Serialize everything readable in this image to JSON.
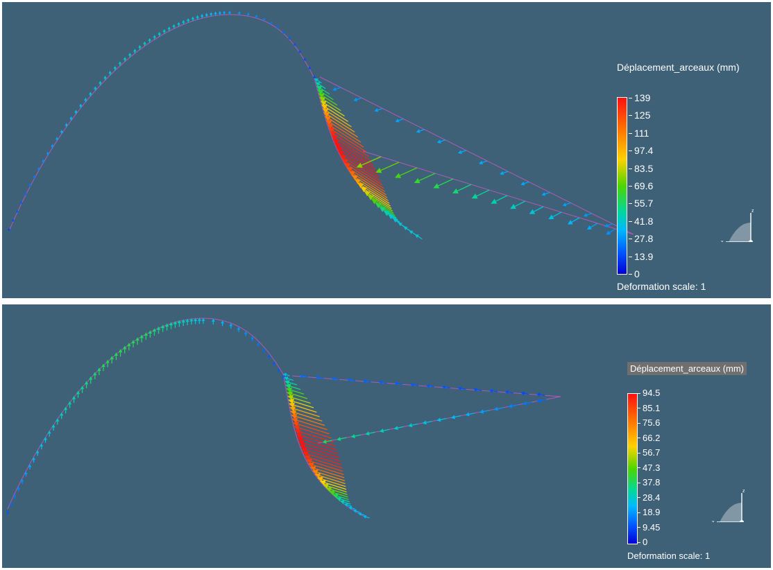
{
  "views": [
    {
      "legend_title": "Déplacement_arceaux (mm)",
      "colorbar_ticks": [
        "139",
        "125",
        "111",
        "97.4",
        "83.5",
        "69.6",
        "55.7",
        "41.8",
        "27.8",
        "13.9",
        "0"
      ],
      "deformation_scale": "Deformation scale: 1",
      "axes_labels": {
        "x": "x",
        "z": "z"
      }
    },
    {
      "legend_title": "Déplacement_arceaux (mm)",
      "colorbar_ticks": [
        "94.5",
        "85.1",
        "75.6",
        "66.2",
        "56.7",
        "47.3",
        "37.8",
        "28.4",
        "18.9",
        "9.45",
        "0"
      ],
      "deformation_scale": "Deformation scale: 1",
      "axes_labels": {
        "x": "x",
        "z": "z"
      }
    }
  ],
  "colors": {
    "background": "#3f6178",
    "mesh_line": "#b05ab8",
    "colormap": [
      "#0000d8",
      "#0055ff",
      "#00b9ff",
      "#00d7a0",
      "#4cd600",
      "#ffd200",
      "#ff7f00",
      "#ff1010"
    ]
  }
}
